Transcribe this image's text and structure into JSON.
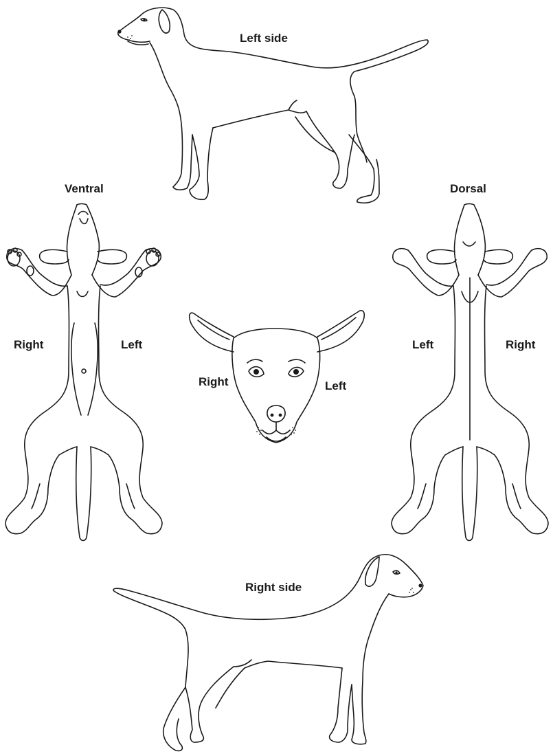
{
  "labels": {
    "left_side": "Left side",
    "ventral": "Ventral",
    "dorsal": "Dorsal",
    "ventral_right": "Right",
    "ventral_left": "Left",
    "head_right": "Right",
    "head_left": "Left",
    "dorsal_left": "Left",
    "dorsal_right": "Right",
    "right_side": "Right side"
  }
}
